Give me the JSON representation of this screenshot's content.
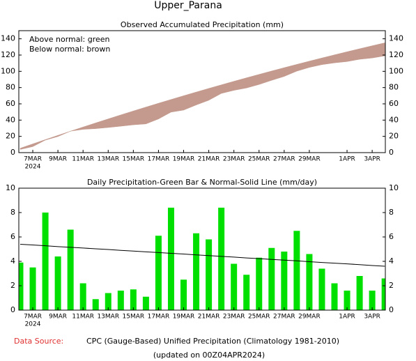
{
  "title": "Upper_Parana",
  "chart_data": [
    {
      "type": "area",
      "title": "Observed Accumulated Precipitation (mm)",
      "annotations": [
        "Above normal: green",
        "Below normal: brown"
      ],
      "categories": [
        null,
        "7MAR",
        null,
        "9MAR",
        null,
        "11MAR",
        null,
        "13MAR",
        null,
        "15MAR",
        null,
        "17MAR",
        null,
        "19MAR",
        null,
        "21MAR",
        null,
        "23MAR",
        null,
        "25MAR",
        null,
        "27MAR",
        null,
        "29MAR",
        null,
        null,
        "1APR",
        null,
        "3APR",
        null
      ],
      "year_label": "2024",
      "series": [
        {
          "values": [
            3.9,
            7.4,
            15.4,
            19.8,
            26.4,
            28.6,
            29.5,
            30.9,
            32.5,
            34.2,
            35.3,
            41.4,
            49.8,
            52.3,
            58.6,
            64.4,
            72.8,
            76.6,
            79.5,
            83.8,
            88.9,
            93.7,
            100.2,
            104.8,
            108.2,
            110.4,
            112.0,
            114.8,
            116.4,
            119.0
          ]
        },
        {
          "values": [
            5.4,
            10.74,
            16.01,
            21.23,
            26.38,
            31.47,
            36.5,
            41.46,
            46.37,
            51.21,
            55.99,
            60.71,
            65.36,
            69.96,
            74.49,
            78.96,
            83.37,
            87.71,
            92.0,
            96.22,
            100.38,
            104.48,
            108.51,
            112.49,
            116.4,
            120.25,
            124.04,
            127.76,
            131.43,
            135.03
          ]
        }
      ],
      "above_color": "#00e000",
      "below_color": "#c49a8e",
      "ylim": [
        0,
        150
      ],
      "yticks": [
        0,
        20,
        40,
        60,
        80,
        100,
        120,
        140
      ]
    },
    {
      "type": "bar",
      "title": "Daily Precipitation-Green Bar & Normal-Solid Line (mm/day)",
      "categories": [
        null,
        "7MAR",
        null,
        "9MAR",
        null,
        "11MAR",
        null,
        "13MAR",
        null,
        "15MAR",
        null,
        "17MAR",
        null,
        "19MAR",
        null,
        "21MAR",
        null,
        "23MAR",
        null,
        "25MAR",
        null,
        "27MAR",
        null,
        "29MAR",
        null,
        null,
        "1APR",
        null,
        "3APR",
        null
      ],
      "year_label": "2024",
      "series": [
        {
          "values": [
            3.9,
            3.5,
            8.0,
            4.4,
            6.6,
            2.2,
            0.9,
            1.4,
            1.6,
            1.7,
            1.1,
            6.1,
            8.4,
            2.5,
            6.3,
            5.8,
            8.4,
            3.8,
            2.9,
            4.3,
            5.1,
            4.8,
            6.5,
            4.6,
            3.4,
            2.2,
            1.6,
            2.8,
            1.6,
            2.6
          ],
          "color": "#00e000"
        },
        {
          "values": [
            5.4,
            5.34,
            5.28,
            5.21,
            5.15,
            5.09,
            5.03,
            4.97,
            4.9,
            4.84,
            4.78,
            4.72,
            4.66,
            4.6,
            4.53,
            4.47,
            4.41,
            4.35,
            4.28,
            4.22,
            4.16,
            4.1,
            4.04,
            3.97,
            3.91,
            3.85,
            3.79,
            3.73,
            3.66,
            3.6
          ],
          "color": "#000000"
        }
      ],
      "ylim": [
        0,
        10
      ],
      "yticks": [
        0,
        2,
        4,
        6,
        8,
        10
      ]
    }
  ],
  "footer": {
    "source_label": "Data Source:",
    "source": "CPC (Gauge-Based) Unified Precipitation (Climatology 1981-2010)",
    "updated": "(updated on 00Z04APR2024)"
  }
}
